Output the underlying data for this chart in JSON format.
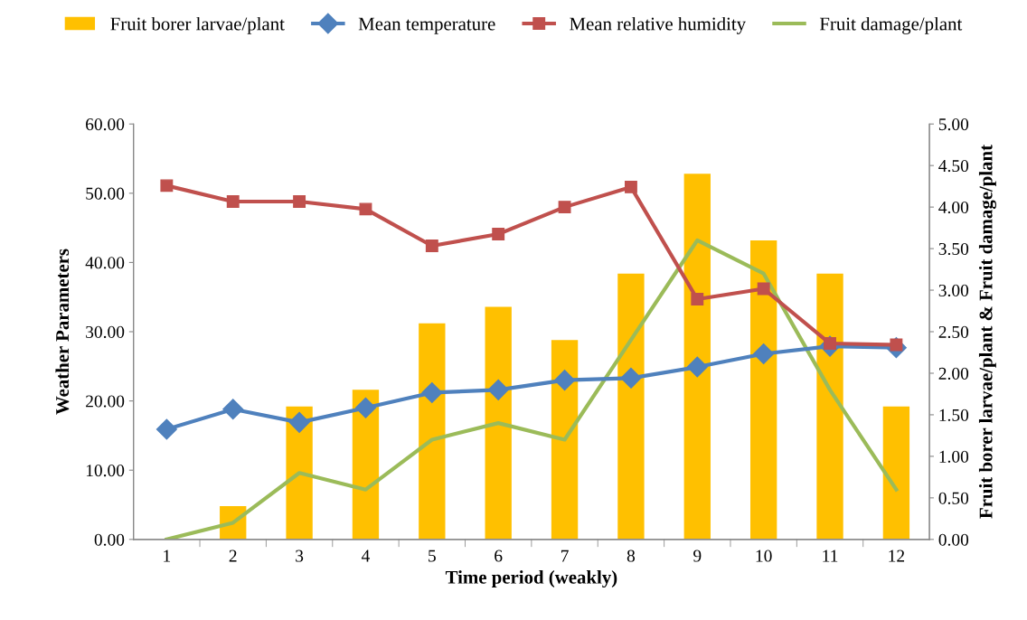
{
  "chart_data": {
    "type": "bar",
    "xlabel": "Time period (weakly)",
    "ylabel": "Weather Parameters",
    "y2label": "Fruit borer larvae/plant & Fruit damage/plant",
    "categories": [
      "1",
      "2",
      "3",
      "4",
      "5",
      "6",
      "7",
      "8",
      "9",
      "10",
      "11",
      "12"
    ],
    "series": [
      {
        "name": "Fruit borer larvae/plant",
        "axis": "y2",
        "color": "#ffc000",
        "values": [
          0,
          0.4,
          1.6,
          1.8,
          2.6,
          2.8,
          2.4,
          3.2,
          4.4,
          3.6,
          3.2,
          1.6
        ]
      },
      {
        "name": "Mean temperature",
        "type": "line",
        "axis": "y",
        "marker": "diamond",
        "color": "#4f81bd",
        "values": [
          15.9,
          18.8,
          16.9,
          19.0,
          21.2,
          21.6,
          23.0,
          23.3,
          24.9,
          26.8,
          27.9,
          27.7
        ]
      },
      {
        "name": "Mean relative humidity",
        "type": "line",
        "axis": "y",
        "marker": "square",
        "color": "#c0504d",
        "values": [
          51.1,
          48.8,
          48.8,
          47.7,
          42.4,
          44.1,
          48.0,
          50.9,
          34.7,
          36.2,
          28.3,
          28.1
        ]
      },
      {
        "name": "Fruit damage/plant",
        "type": "line",
        "axis": "y2",
        "marker": "none",
        "color": "#9bbb59",
        "values": [
          0,
          0.2,
          0.8,
          0.6,
          1.2,
          1.4,
          1.2,
          2.4,
          3.6,
          3.2,
          1.8,
          0.6
        ]
      }
    ],
    "ylim": [
      0,
      60
    ],
    "yticks": [
      {
        "value": 0,
        "label": "0.00"
      },
      {
        "value": 10,
        "label": "10.00"
      },
      {
        "value": 20,
        "label": "20.00"
      },
      {
        "value": 30,
        "label": "30.00"
      },
      {
        "value": 40,
        "label": "40.00"
      },
      {
        "value": 50,
        "label": "50.00"
      },
      {
        "value": 60,
        "label": "60.00"
      }
    ],
    "y2lim": [
      0,
      5
    ],
    "y2ticks": [
      {
        "value": 0,
        "label": "0.00"
      },
      {
        "value": 0.5,
        "label": "0.50"
      },
      {
        "value": 1,
        "label": "1.00"
      },
      {
        "value": 1.5,
        "label": "1.50"
      },
      {
        "value": 2,
        "label": "2.00"
      },
      {
        "value": 2.5,
        "label": "2.50"
      },
      {
        "value": 3,
        "label": "3.00"
      },
      {
        "value": 3.5,
        "label": "3.50"
      },
      {
        "value": 4,
        "label": "4.00"
      },
      {
        "value": 4.5,
        "label": "4.50"
      },
      {
        "value": 5,
        "label": "5.00"
      }
    ],
    "grid": false,
    "legend": "top"
  }
}
